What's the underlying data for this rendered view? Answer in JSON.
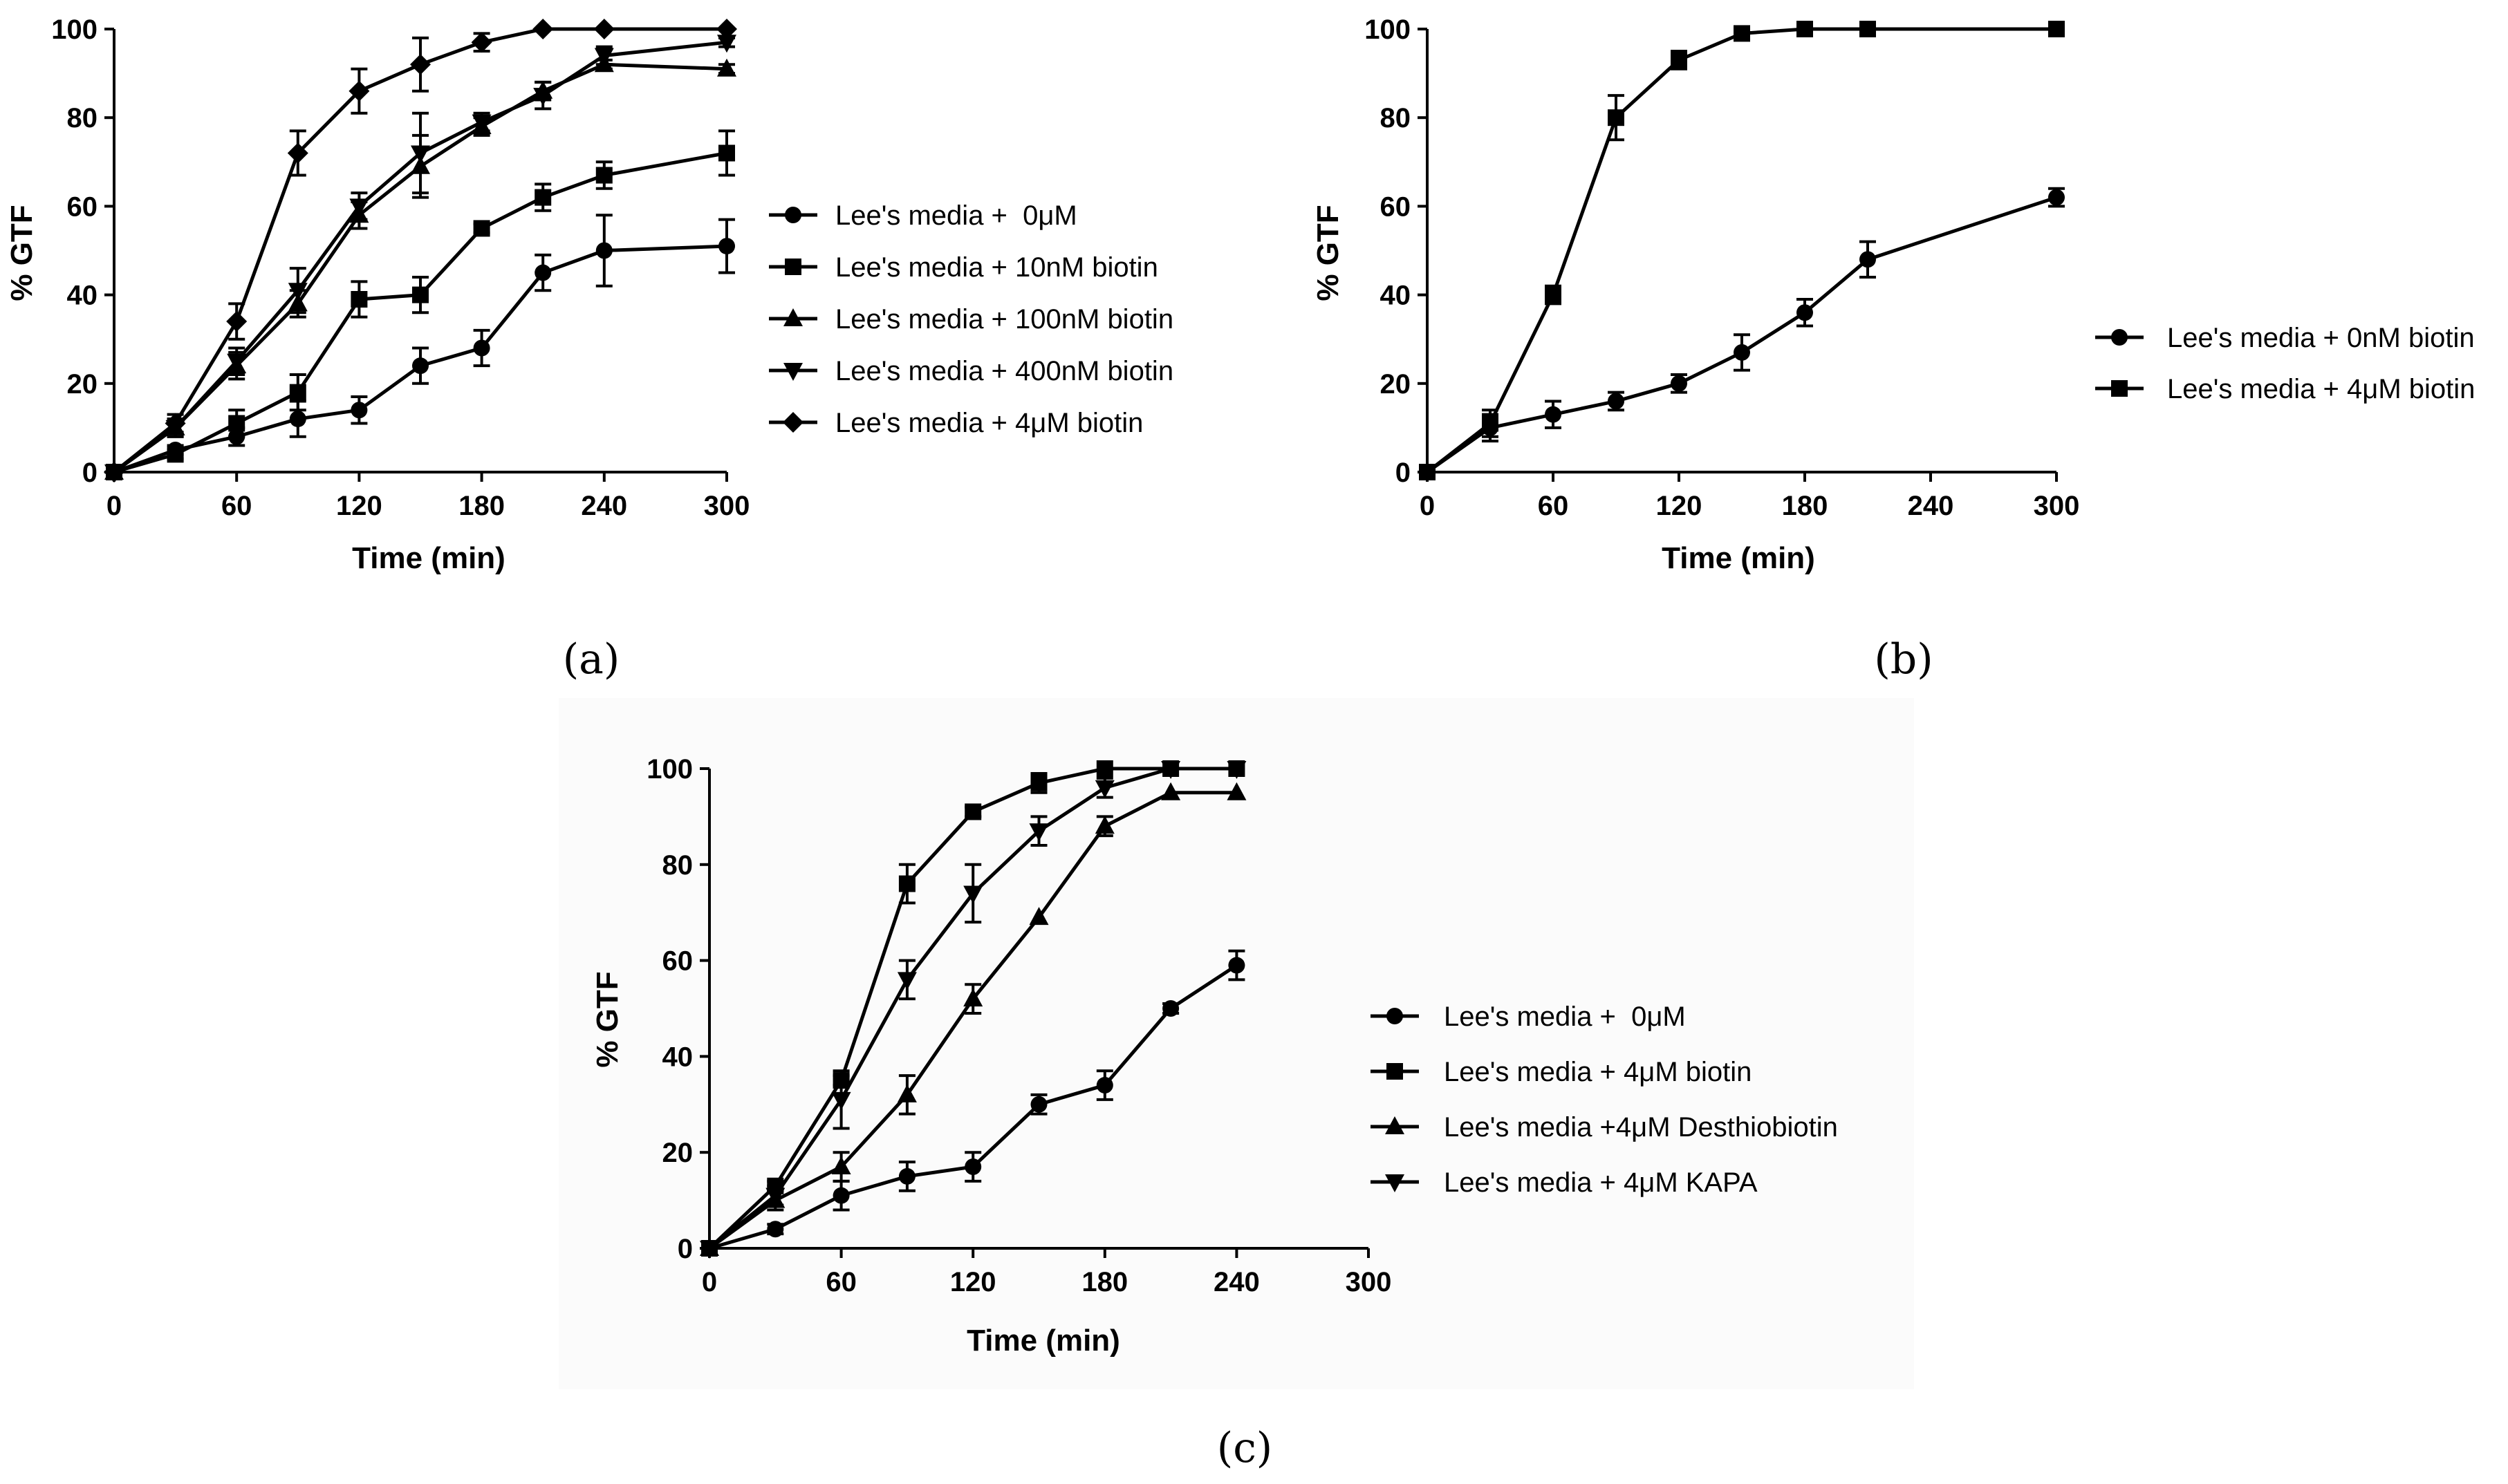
{
  "figure": {
    "panel_labels": [
      "(a)",
      "(b)",
      "(c)"
    ],
    "colors": {
      "ink": "#000000",
      "background": "#ffffff"
    }
  },
  "chart_data": [
    {
      "panel": "(a)",
      "type": "line",
      "title": "",
      "xlabel": "Time (min)",
      "ylabel": "% GTF",
      "xlim": [
        0,
        300
      ],
      "ylim": [
        0,
        100
      ],
      "xticks": [
        0,
        60,
        120,
        180,
        240,
        300
      ],
      "yticks": [
        0,
        20,
        40,
        60,
        80,
        100
      ],
      "grid": false,
      "legend_position": "right",
      "series": [
        {
          "name": "Lee's media +  0μM",
          "marker": "circle",
          "x": [
            0,
            30,
            60,
            90,
            120,
            150,
            180,
            210,
            240,
            300
          ],
          "y": [
            0,
            5,
            8,
            12,
            14,
            24,
            28,
            45,
            50,
            51
          ],
          "err": [
            0,
            1,
            2,
            4,
            3,
            4,
            4,
            4,
            8,
            6
          ]
        },
        {
          "name": "Lee's media + 10nM biotin",
          "marker": "square",
          "x": [
            0,
            30,
            60,
            90,
            120,
            150,
            180,
            210,
            240,
            300
          ],
          "y": [
            0,
            4,
            11,
            18,
            39,
            40,
            55,
            62,
            67,
            72
          ],
          "err": [
            0,
            1,
            3,
            4,
            4,
            4,
            1,
            3,
            3,
            5
          ]
        },
        {
          "name": "Lee's media + 100nM biotin",
          "marker": "triangle-up",
          "x": [
            0,
            30,
            60,
            90,
            120,
            150,
            180,
            210,
            240,
            300
          ],
          "y": [
            0,
            10,
            24,
            38,
            58,
            69,
            78,
            86,
            92,
            91
          ],
          "err": [
            0,
            2,
            3,
            3,
            3,
            7,
            2,
            2,
            1,
            1
          ]
        },
        {
          "name": "Lee's media + 400nM biotin",
          "marker": "triangle-down",
          "x": [
            0,
            30,
            60,
            90,
            120,
            150,
            180,
            210,
            240,
            300
          ],
          "y": [
            0,
            10,
            25,
            41,
            60,
            72,
            79,
            85,
            94,
            97
          ],
          "err": [
            0,
            2,
            3,
            5,
            3,
            9,
            2,
            3,
            2,
            1
          ]
        },
        {
          "name": "Lee's media + 4μM biotin",
          "marker": "diamond",
          "x": [
            0,
            30,
            60,
            90,
            120,
            150,
            180,
            210,
            240,
            300
          ],
          "y": [
            0,
            11,
            34,
            72,
            86,
            92,
            97,
            100,
            100,
            100
          ],
          "err": [
            0,
            2,
            4,
            5,
            5,
            6,
            2,
            0,
            0,
            0
          ]
        }
      ]
    },
    {
      "panel": "(b)",
      "type": "line",
      "title": "",
      "xlabel": "Time (min)",
      "ylabel": "% GTF",
      "xlim": [
        0,
        300
      ],
      "ylim": [
        0,
        100
      ],
      "xticks": [
        0,
        60,
        120,
        180,
        240,
        300
      ],
      "yticks": [
        0,
        20,
        40,
        60,
        80,
        100
      ],
      "grid": false,
      "legend_position": "right",
      "series": [
        {
          "name": "Lee's media + 0nM biotin",
          "marker": "circle",
          "x": [
            0,
            30,
            60,
            90,
            120,
            150,
            180,
            210,
            300
          ],
          "y": [
            0,
            10,
            13,
            16,
            20,
            27,
            36,
            48,
            62
          ],
          "err": [
            0,
            3,
            3,
            2,
            2,
            4,
            3,
            4,
            2
          ]
        },
        {
          "name": "Lee's media + 4μM biotin",
          "marker": "square",
          "x": [
            0,
            30,
            60,
            90,
            120,
            150,
            180,
            210,
            300
          ],
          "y": [
            0,
            11,
            40,
            80,
            93,
            99,
            100,
            100,
            100
          ],
          "err": [
            0,
            3,
            2,
            5,
            2,
            0,
            0,
            0,
            0
          ]
        }
      ]
    },
    {
      "panel": "(c)",
      "type": "line",
      "title": "",
      "xlabel": "Time (min)",
      "ylabel": "% GTF",
      "xlim": [
        0,
        300
      ],
      "ylim": [
        0,
        100
      ],
      "xticks": [
        0,
        60,
        120,
        180,
        240,
        300
      ],
      "yticks": [
        0,
        20,
        40,
        60,
        80,
        100
      ],
      "grid": false,
      "legend_position": "right",
      "series": [
        {
          "name": "Lee's media +  0μM",
          "marker": "circle",
          "x": [
            0,
            30,
            60,
            90,
            120,
            150,
            180,
            210,
            240
          ],
          "y": [
            0,
            4,
            11,
            15,
            17,
            30,
            34,
            50,
            59
          ],
          "err": [
            0,
            1,
            3,
            3,
            3,
            2,
            3,
            1,
            3
          ]
        },
        {
          "name": "Lee's media + 4μM biotin",
          "marker": "square",
          "x": [
            0,
            30,
            60,
            90,
            120,
            150,
            180,
            210,
            240
          ],
          "y": [
            0,
            13,
            35,
            76,
            91,
            97,
            100,
            100,
            100
          ],
          "err": [
            0,
            1,
            1,
            4,
            1,
            2,
            0,
            0,
            0
          ]
        },
        {
          "name": "Lee's media +4μM Desthiobiotin",
          "marker": "triangle-up",
          "x": [
            0,
            30,
            60,
            90,
            120,
            150,
            180,
            210,
            240
          ],
          "y": [
            0,
            10,
            17,
            32,
            52,
            69,
            88,
            95,
            95
          ],
          "err": [
            0,
            2,
            3,
            4,
            3,
            0,
            2,
            0,
            0
          ]
        },
        {
          "name": "Lee's media + 4μM KAPA",
          "marker": "triangle-down",
          "x": [
            0,
            30,
            60,
            90,
            120,
            150,
            180,
            210,
            240
          ],
          "y": [
            0,
            11,
            31,
            56,
            74,
            87,
            96,
            100,
            100
          ],
          "err": [
            0,
            2,
            6,
            4,
            6,
            3,
            2,
            0,
            0
          ]
        }
      ]
    }
  ]
}
